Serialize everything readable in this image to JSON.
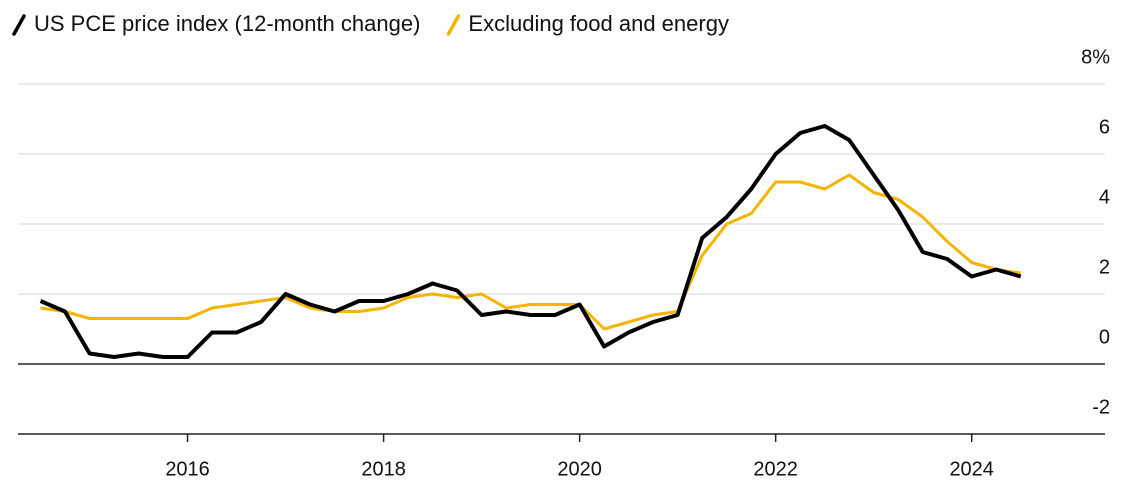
{
  "chart_data": {
    "type": "line",
    "x": [
      2014.5,
      2014.75,
      2015.0,
      2015.25,
      2015.5,
      2015.75,
      2016.0,
      2016.25,
      2016.5,
      2016.75,
      2017.0,
      2017.25,
      2017.5,
      2017.75,
      2018.0,
      2018.25,
      2018.5,
      2018.75,
      2019.0,
      2019.25,
      2019.5,
      2019.75,
      2020.0,
      2020.25,
      2020.5,
      2020.75,
      2021.0,
      2021.25,
      2021.5,
      2021.75,
      2022.0,
      2022.25,
      2022.5,
      2022.75,
      2023.0,
      2023.25,
      2023.5,
      2023.75,
      2024.0,
      2024.25,
      2024.5
    ],
    "series": [
      {
        "name": "US PCE price index (12-month change)",
        "color": "#000000",
        "values": [
          1.8,
          1.5,
          0.3,
          0.2,
          0.3,
          0.2,
          0.2,
          0.9,
          0.9,
          1.2,
          2.0,
          1.7,
          1.5,
          1.8,
          1.8,
          2.0,
          2.3,
          2.1,
          1.4,
          1.5,
          1.4,
          1.4,
          1.7,
          0.5,
          0.9,
          1.2,
          1.4,
          3.6,
          4.2,
          5.0,
          6.0,
          6.6,
          6.8,
          6.4,
          5.4,
          4.4,
          3.2,
          3.0,
          2.5,
          2.7,
          2.5
        ]
      },
      {
        "name": "Excluding food and energy",
        "color": "#f5b400",
        "values": [
          1.6,
          1.5,
          1.3,
          1.3,
          1.3,
          1.3,
          1.3,
          1.6,
          1.7,
          1.8,
          1.9,
          1.6,
          1.5,
          1.5,
          1.6,
          1.9,
          2.0,
          1.9,
          2.0,
          1.6,
          1.7,
          1.7,
          1.7,
          1.0,
          1.2,
          1.4,
          1.5,
          3.1,
          4.0,
          4.3,
          5.2,
          5.2,
          5.0,
          5.4,
          4.9,
          4.7,
          4.2,
          3.5,
          2.9,
          2.7,
          2.6
        ]
      }
    ],
    "xlim": [
      2014.27,
      2025.36
    ],
    "xticks": [
      2016,
      2018,
      2020,
      2022,
      2024
    ],
    "ylim": [
      -2,
      8
    ],
    "yticks": [
      -2,
      0,
      2,
      4,
      6,
      {
        "value": 8,
        "label": "8%"
      }
    ],
    "grid": true
  }
}
